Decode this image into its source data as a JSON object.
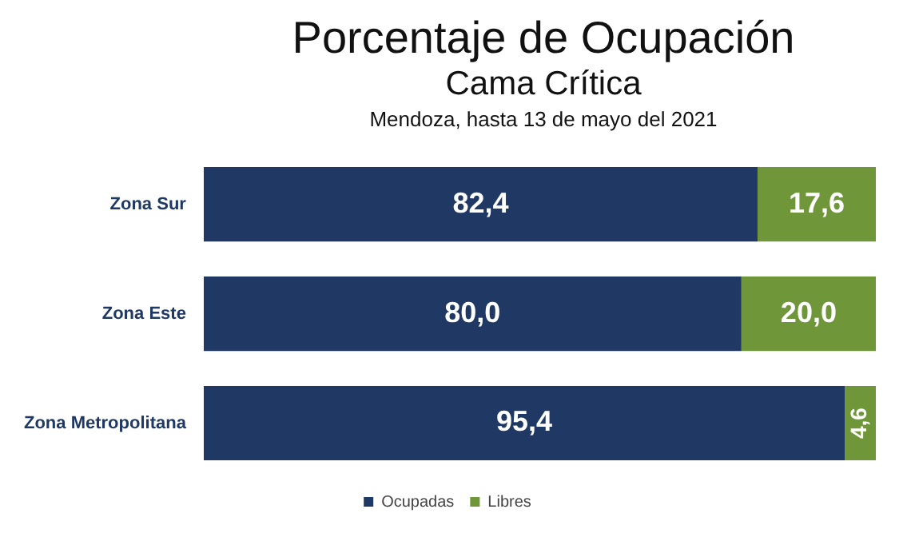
{
  "chart_data": {
    "type": "bar",
    "orientation": "horizontal",
    "stacked": true,
    "title": "Porcentaje de Ocupación",
    "subtitle": "Cama Crítica",
    "annotations": [
      "Mendoza, hasta 13 de mayo del 2021"
    ],
    "categories": [
      "Zona Sur",
      "Zona Este",
      "Zona Metropolitana"
    ],
    "xlim": [
      0,
      100
    ],
    "series": [
      {
        "name": "Ocupadas",
        "color": "#203864",
        "values": [
          82.4,
          80.0,
          95.4
        ],
        "value_labels": [
          "82,4",
          "80,0",
          "95,4"
        ]
      },
      {
        "name": "Libres",
        "color": "#70963a",
        "values": [
          17.6,
          20.0,
          4.6
        ],
        "value_labels": [
          "17,6",
          "20,0",
          "4,6"
        ]
      }
    ],
    "legend": "bottom"
  }
}
